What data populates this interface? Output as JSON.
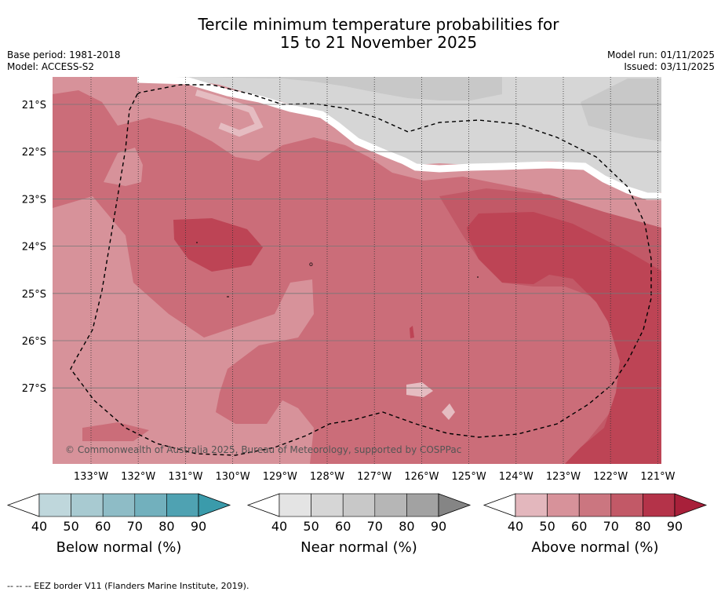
{
  "header": {
    "title_line1": "Tercile minimum temperature probabilities for",
    "title_line2": "15 to 21 November 2025",
    "base_period": "Base period: 1981-2018",
    "model": "Model: ACCESS-S2",
    "model_run": "Model run: 01/11/2025",
    "issued": "Issued: 03/11/2025"
  },
  "map": {
    "copyright": "© Commonwealth of Australia 2025, Bureau of Meteorology, supported by COSPPac",
    "lat_labels": [
      "21°S",
      "22°S",
      "23°S",
      "24°S",
      "25°S",
      "26°S",
      "27°S"
    ],
    "lon_labels": [
      "133°W",
      "132°W",
      "131°W",
      "130°W",
      "129°W",
      "128°W",
      "127°W",
      "126°W",
      "125°W",
      "124°W",
      "123°W",
      "122°W",
      "121°W"
    ],
    "colors": {
      "above_50": "#d7929a",
      "above_60": "#cb6d79",
      "above_70": "#c25967",
      "above_80": "#bd4455",
      "near_50": "#d6d6d6",
      "near_60": "#c8c8c8",
      "lightpink": "#e5bcc1"
    }
  },
  "legends": [
    {
      "name": "below",
      "label": "Below normal (%)",
      "ticks": [
        "40",
        "50",
        "60",
        "70",
        "80",
        "90"
      ],
      "colors": [
        "#ffffff",
        "#bfd7dc",
        "#a8cad1",
        "#8ebcc6",
        "#72b0bd",
        "#4fa2b2",
        "#3a9bab"
      ]
    },
    {
      "name": "near",
      "label": "Near normal (%)",
      "ticks": [
        "40",
        "50",
        "60",
        "70",
        "80",
        "90"
      ],
      "colors": [
        "#ffffff",
        "#e4e4e4",
        "#d6d6d6",
        "#c8c8c8",
        "#b6b6b6",
        "#a2a2a2",
        "#858585"
      ]
    },
    {
      "name": "above",
      "label": "Above normal (%)",
      "ticks": [
        "40",
        "50",
        "60",
        "70",
        "80",
        "90"
      ],
      "colors": [
        "#ffffff",
        "#e3b7bd",
        "#d7929a",
        "#cb7680",
        "#c25967",
        "#b43349",
        "#a8203a"
      ]
    }
  ],
  "footnote": "--  --  -- EEZ border V11 (Flanders Marine Institute, 2019)."
}
